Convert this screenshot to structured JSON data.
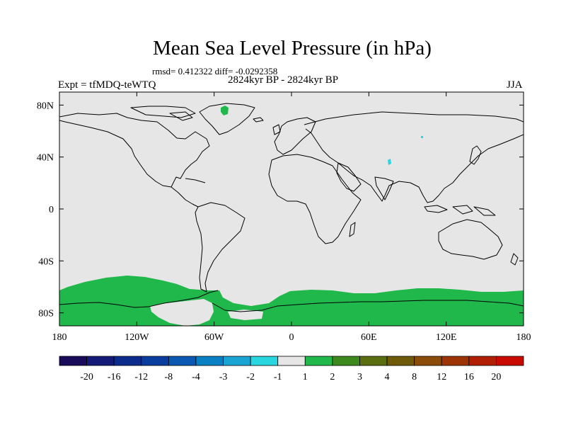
{
  "title": "Mean Sea Level Pressure (in hPa)",
  "stats": "rmsd= 0.412322 diff= -0.0292358",
  "expt": "Expt = tfMDQ-teWTQ",
  "period": "2824kyr BP - 2824kyr BP",
  "season": "JJA",
  "colors": {
    "ocean_land_neutral": "#e6e6e6",
    "positive_1_2": "#20b84a",
    "negative_minus2_minus1": "#28d6e0",
    "coastline": "#000000"
  },
  "map_data": {
    "projection": "cylindrical-equidistant",
    "lon_range": [
      -180,
      180
    ],
    "lat_range": [
      -90,
      90
    ],
    "lon_ticks": [
      {
        "value": -180,
        "label": "180"
      },
      {
        "value": -120,
        "label": "120W"
      },
      {
        "value": -60,
        "label": "60W"
      },
      {
        "value": 0,
        "label": "0"
      },
      {
        "value": 60,
        "label": "60E"
      },
      {
        "value": 120,
        "label": "120E"
      },
      {
        "value": 180,
        "label": "180"
      }
    ],
    "lat_ticks": [
      {
        "value": 80,
        "label": "80N"
      },
      {
        "value": 40,
        "label": "40N"
      },
      {
        "value": 0,
        "label": "0"
      },
      {
        "value": -40,
        "label": "40S"
      },
      {
        "value": -80,
        "label": "80S"
      }
    ],
    "colorbar": {
      "colors": [
        "#1a0a5a",
        "#141a78",
        "#0c2c8c",
        "#0a3e9e",
        "#0a58b2",
        "#0a80c4",
        "#1aa4d4",
        "#28d6e0",
        "#e6e6e6",
        "#20b84a",
        "#3c8a1e",
        "#5a6e10",
        "#6e5a08",
        "#8a4c08",
        "#9c3406",
        "#b01e04",
        "#c80a02"
      ],
      "labels": [
        "-20",
        "-16",
        "-12",
        "-8",
        "-4",
        "-3",
        "-2",
        "-1",
        "1",
        "2",
        "3",
        "4",
        "8",
        "12",
        "16",
        "20"
      ]
    }
  }
}
